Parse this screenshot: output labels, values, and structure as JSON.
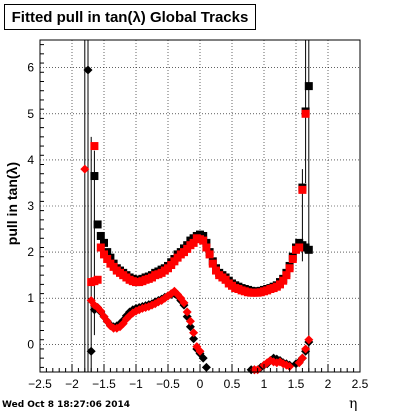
{
  "title": "Fitted pull in tan(λ)  Global Tracks",
  "ylabel": "pull in tan(λ)",
  "xlabel": "η",
  "timestamp": "Wed Oct  8 18:27:06 2014",
  "chart_data": {
    "type": "scatter",
    "title": "Fitted pull in tan(λ)  Global Tracks",
    "xlabel": "η",
    "ylabel": "pull in tan(λ)",
    "xlim": [
      -2.5,
      2.5
    ],
    "ylim": [
      -0.6,
      6.6
    ],
    "xticks": [
      -2.5,
      -2,
      -1.5,
      -1,
      -0.5,
      0,
      0.5,
      1,
      1.5,
      2,
      2.5
    ],
    "xtick_labels": [
      "−2.5",
      "−2",
      "−1.5",
      "−1",
      "−0.5",
      "0",
      "0.5",
      "1",
      "1.5",
      "2",
      "2.5"
    ],
    "yticks": [
      0,
      1,
      2,
      3,
      4,
      5,
      6
    ],
    "ytick_labels": [
      "0",
      "1",
      "2",
      "3",
      "4",
      "5",
      "6"
    ],
    "grid": true,
    "colors": {
      "black": "#000000",
      "red": "#ff0000"
    },
    "series": [
      {
        "marker": "square",
        "color": "#000000",
        "points": [
          [
            -1.65,
            3.65
          ],
          [
            -1.6,
            2.6
          ],
          [
            -1.55,
            2.35
          ],
          [
            -1.5,
            2.2
          ],
          [
            -1.45,
            2.0
          ],
          [
            -1.4,
            1.88
          ],
          [
            -1.35,
            1.75
          ],
          [
            -1.3,
            1.65
          ],
          [
            -1.25,
            1.6
          ],
          [
            -1.2,
            1.55
          ],
          [
            -1.15,
            1.5
          ],
          [
            -1.1,
            1.45
          ],
          [
            -1.05,
            1.42
          ],
          [
            -1.0,
            1.4
          ],
          [
            -0.95,
            1.4
          ],
          [
            -0.9,
            1.42
          ],
          [
            -0.85,
            1.45
          ],
          [
            -0.8,
            1.47
          ],
          [
            -0.75,
            1.5
          ],
          [
            -0.7,
            1.55
          ],
          [
            -0.65,
            1.58
          ],
          [
            -0.6,
            1.62
          ],
          [
            -0.55,
            1.65
          ],
          [
            -0.5,
            1.7
          ],
          [
            -0.45,
            1.78
          ],
          [
            -0.4,
            1.85
          ],
          [
            -0.35,
            1.95
          ],
          [
            -0.3,
            2.0
          ],
          [
            -0.25,
            2.08
          ],
          [
            -0.2,
            2.15
          ],
          [
            -0.15,
            2.25
          ],
          [
            -0.1,
            2.3
          ],
          [
            -0.05,
            2.35
          ],
          [
            0.0,
            2.38
          ],
          [
            0.05,
            2.35
          ],
          [
            0.1,
            2.2
          ],
          [
            0.15,
            2.0
          ],
          [
            0.2,
            1.8
          ],
          [
            0.25,
            1.65
          ],
          [
            0.3,
            1.55
          ],
          [
            0.35,
            1.5
          ],
          [
            0.4,
            1.45
          ],
          [
            0.45,
            1.38
          ],
          [
            0.5,
            1.32
          ],
          [
            0.55,
            1.28
          ],
          [
            0.6,
            1.25
          ],
          [
            0.65,
            1.22
          ],
          [
            0.7,
            1.2
          ],
          [
            0.75,
            1.18
          ],
          [
            0.8,
            1.16
          ],
          [
            0.85,
            1.15
          ],
          [
            0.9,
            1.15
          ],
          [
            0.95,
            1.16
          ],
          [
            1.0,
            1.18
          ],
          [
            1.05,
            1.2
          ],
          [
            1.1,
            1.22
          ],
          [
            1.15,
            1.25
          ],
          [
            1.2,
            1.28
          ],
          [
            1.25,
            1.35
          ],
          [
            1.3,
            1.42
          ],
          [
            1.35,
            1.55
          ],
          [
            1.4,
            1.7
          ],
          [
            1.45,
            1.9
          ],
          [
            1.5,
            2.1
          ],
          [
            1.55,
            2.2
          ],
          [
            1.6,
            2.15
          ],
          [
            1.65,
            2.1
          ],
          [
            1.7,
            2.05
          ],
          [
            1.6,
            3.4
          ],
          [
            1.65,
            5.05
          ],
          [
            1.7,
            5.6
          ]
        ]
      },
      {
        "marker": "square",
        "color": "#ff0000",
        "points": [
          [
            -1.7,
            1.35
          ],
          [
            -1.65,
            4.3
          ],
          [
            -1.65,
            1.37
          ],
          [
            -1.6,
            1.4
          ],
          [
            -1.55,
            2.1
          ],
          [
            -1.5,
            1.95
          ],
          [
            -1.45,
            1.85
          ],
          [
            -1.4,
            1.75
          ],
          [
            -1.35,
            1.68
          ],
          [
            -1.3,
            1.6
          ],
          [
            -1.25,
            1.55
          ],
          [
            -1.2,
            1.5
          ],
          [
            -1.15,
            1.45
          ],
          [
            -1.1,
            1.4
          ],
          [
            -1.05,
            1.37
          ],
          [
            -1.0,
            1.35
          ],
          [
            -0.95,
            1.35
          ],
          [
            -0.9,
            1.37
          ],
          [
            -0.85,
            1.4
          ],
          [
            -0.8,
            1.42
          ],
          [
            -0.75,
            1.45
          ],
          [
            -0.7,
            1.5
          ],
          [
            -0.65,
            1.52
          ],
          [
            -0.6,
            1.55
          ],
          [
            -0.55,
            1.6
          ],
          [
            -0.5,
            1.65
          ],
          [
            -0.45,
            1.72
          ],
          [
            -0.4,
            1.8
          ],
          [
            -0.35,
            1.88
          ],
          [
            -0.3,
            1.95
          ],
          [
            -0.25,
            2.0
          ],
          [
            -0.2,
            2.07
          ],
          [
            -0.15,
            2.15
          ],
          [
            -0.1,
            2.2
          ],
          [
            -0.05,
            2.3
          ],
          [
            0.0,
            2.28
          ],
          [
            0.05,
            2.25
          ],
          [
            0.1,
            2.1
          ],
          [
            0.15,
            1.95
          ],
          [
            0.2,
            1.75
          ],
          [
            0.25,
            1.6
          ],
          [
            0.3,
            1.5
          ],
          [
            0.35,
            1.45
          ],
          [
            0.4,
            1.4
          ],
          [
            0.45,
            1.32
          ],
          [
            0.5,
            1.27
          ],
          [
            0.55,
            1.22
          ],
          [
            0.6,
            1.2
          ],
          [
            0.65,
            1.17
          ],
          [
            0.7,
            1.15
          ],
          [
            0.75,
            1.13
          ],
          [
            0.8,
            1.12
          ],
          [
            0.85,
            1.12
          ],
          [
            0.9,
            1.12
          ],
          [
            0.95,
            1.13
          ],
          [
            1.0,
            1.15
          ],
          [
            1.05,
            1.17
          ],
          [
            1.1,
            1.2
          ],
          [
            1.15,
            1.22
          ],
          [
            1.2,
            1.25
          ],
          [
            1.25,
            1.3
          ],
          [
            1.3,
            1.38
          ],
          [
            1.35,
            1.5
          ],
          [
            1.4,
            1.65
          ],
          [
            1.45,
            1.85
          ],
          [
            1.5,
            2.05
          ],
          [
            1.55,
            2.1
          ],
          [
            1.6,
            3.35
          ],
          [
            1.65,
            5.0
          ]
        ]
      },
      {
        "marker": "diamond",
        "color": "#000000",
        "points": [
          [
            -1.75,
            5.95
          ],
          [
            -1.7,
            -0.15
          ],
          [
            -1.65,
            0.75
          ],
          [
            -1.6,
            0.8
          ],
          [
            -1.55,
            0.7
          ],
          [
            -1.5,
            0.6
          ],
          [
            -1.45,
            0.5
          ],
          [
            -1.4,
            0.42
          ],
          [
            -1.35,
            0.38
          ],
          [
            -1.3,
            0.4
          ],
          [
            -1.25,
            0.45
          ],
          [
            -1.2,
            0.52
          ],
          [
            -1.15,
            0.62
          ],
          [
            -1.1,
            0.7
          ],
          [
            -1.05,
            0.75
          ],
          [
            -1.0,
            0.78
          ],
          [
            -0.95,
            0.8
          ],
          [
            -0.9,
            0.82
          ],
          [
            -0.85,
            0.84
          ],
          [
            -0.8,
            0.86
          ],
          [
            -0.75,
            0.88
          ],
          [
            -0.7,
            0.92
          ],
          [
            -0.65,
            0.95
          ],
          [
            -0.6,
            0.98
          ],
          [
            -0.55,
            1.02
          ],
          [
            -0.5,
            1.05
          ],
          [
            -0.45,
            1.08
          ],
          [
            -0.4,
            1.1
          ],
          [
            -0.35,
            1.05
          ],
          [
            -0.3,
            0.95
          ],
          [
            -0.25,
            0.85
          ],
          [
            -0.2,
            0.6
          ],
          [
            -0.15,
            0.38
          ],
          [
            -0.1,
            0.12
          ],
          [
            -0.05,
            -0.1
          ],
          [
            0.0,
            -0.2
          ],
          [
            0.05,
            -0.3
          ],
          [
            0.1,
            -0.5
          ],
          [
            0.8,
            -0.55
          ],
          [
            0.85,
            -0.55
          ],
          [
            0.95,
            -0.5
          ],
          [
            1.0,
            -0.45
          ],
          [
            1.05,
            -0.42
          ],
          [
            1.1,
            -0.35
          ],
          [
            1.15,
            -0.3
          ],
          [
            1.2,
            -0.32
          ],
          [
            1.25,
            -0.35
          ],
          [
            1.3,
            -0.4
          ],
          [
            1.35,
            -0.42
          ],
          [
            1.4,
            -0.45
          ],
          [
            1.5,
            -0.42
          ],
          [
            1.55,
            -0.38
          ],
          [
            1.6,
            -0.3
          ],
          [
            1.65,
            -0.15
          ],
          [
            1.7,
            0.05
          ]
        ]
      },
      {
        "marker": "diamond",
        "color": "#ff0000",
        "points": [
          [
            -1.8,
            3.8
          ],
          [
            -1.7,
            0.95
          ],
          [
            -1.65,
            0.85
          ],
          [
            -1.6,
            0.8
          ],
          [
            -1.55,
            0.72
          ],
          [
            -1.5,
            0.6
          ],
          [
            -1.45,
            0.5
          ],
          [
            -1.4,
            0.4
          ],
          [
            -1.35,
            0.35
          ],
          [
            -1.3,
            0.35
          ],
          [
            -1.25,
            0.38
          ],
          [
            -1.2,
            0.45
          ],
          [
            -1.15,
            0.55
          ],
          [
            -1.1,
            0.62
          ],
          [
            -1.05,
            0.68
          ],
          [
            -1.0,
            0.72
          ],
          [
            -0.95,
            0.75
          ],
          [
            -0.9,
            0.78
          ],
          [
            -0.85,
            0.8
          ],
          [
            -0.8,
            0.82
          ],
          [
            -0.75,
            0.85
          ],
          [
            -0.7,
            0.88
          ],
          [
            -0.65,
            0.92
          ],
          [
            -0.6,
            0.95
          ],
          [
            -0.55,
            1.0
          ],
          [
            -0.5,
            1.05
          ],
          [
            -0.45,
            1.1
          ],
          [
            -0.4,
            1.15
          ],
          [
            -0.35,
            1.08
          ],
          [
            -0.3,
            1.0
          ],
          [
            -0.25,
            0.9
          ],
          [
            -0.2,
            0.7
          ],
          [
            -0.15,
            0.5
          ],
          [
            -0.1,
            0.25
          ],
          [
            -0.05,
            -0.05
          ],
          [
            0.0,
            -0.15
          ],
          [
            0.85,
            -0.55
          ],
          [
            0.9,
            -0.55
          ],
          [
            1.0,
            -0.45
          ],
          [
            1.05,
            -0.4
          ],
          [
            1.1,
            -0.35
          ],
          [
            1.15,
            -0.38
          ],
          [
            1.2,
            -0.4
          ],
          [
            1.25,
            -0.38
          ],
          [
            1.3,
            -0.42
          ],
          [
            1.35,
            -0.45
          ],
          [
            1.4,
            -0.48
          ],
          [
            1.55,
            -0.4
          ],
          [
            1.6,
            -0.3
          ],
          [
            1.65,
            -0.1
          ],
          [
            1.7,
            0.1
          ]
        ]
      }
    ],
    "error_bar_columns": [
      {
        "x": -1.8,
        "ylo": -0.6,
        "yhi": 6.6
      },
      {
        "x": -1.75,
        "ylo": -0.6,
        "yhi": 6.6
      },
      {
        "x": -1.7,
        "ylo": -0.6,
        "yhi": 4.5
      },
      {
        "x": -1.65,
        "ylo": 0.2,
        "yhi": 4.2
      },
      {
        "x": 1.6,
        "ylo": 1.8,
        "yhi": 3.8
      },
      {
        "x": 1.65,
        "ylo": 3.5,
        "yhi": 6.6
      },
      {
        "x": 1.7,
        "ylo": -0.6,
        "yhi": 6.6
      }
    ]
  }
}
